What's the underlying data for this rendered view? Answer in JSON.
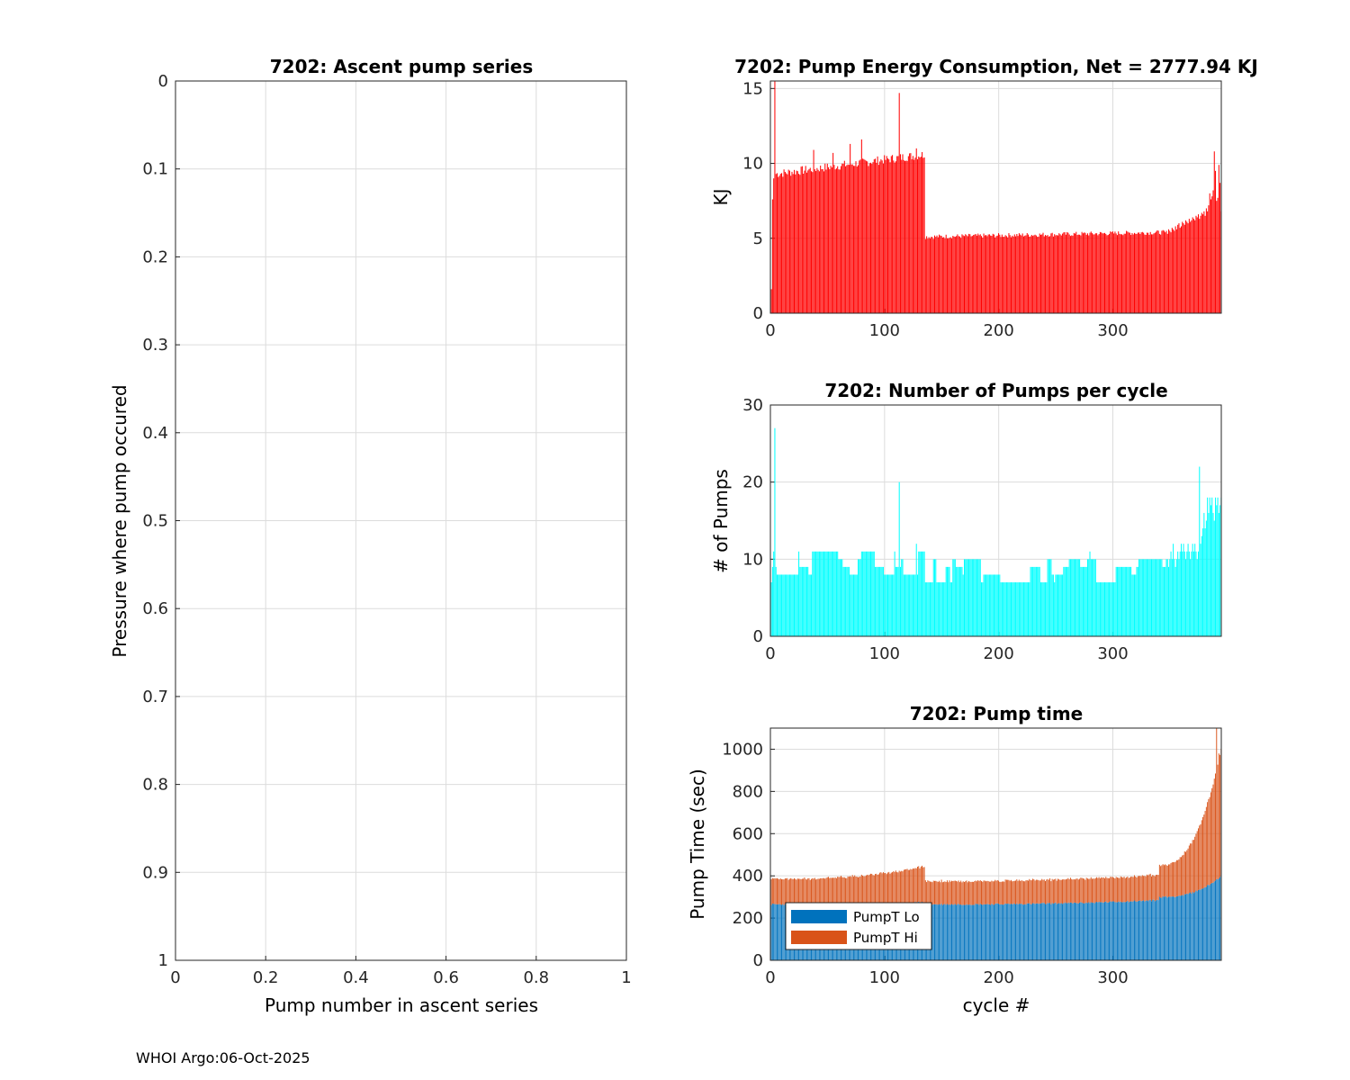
{
  "footer": "WHOI Argo:06-Oct-2025",
  "chart_data": [
    {
      "id": "ascent",
      "type": "scatter",
      "title": "7202: Ascent pump series",
      "xlabel": "Pump number in ascent series",
      "ylabel": "Pressure where pump occured",
      "xlim": [
        0,
        1
      ],
      "ylim": [
        0,
        1
      ],
      "y_reversed": true,
      "grid": true,
      "xticks": [
        0,
        0.2,
        0.4,
        0.6,
        0.8,
        1
      ],
      "xtick_labels": [
        "0",
        "0.2",
        "0.4",
        "0.6",
        "0.8",
        "1"
      ],
      "yticks": [
        0,
        0.1,
        0.2,
        0.3,
        0.4,
        0.5,
        0.6,
        0.7,
        0.8,
        0.9,
        1
      ],
      "ytick_labels": [
        "0",
        "0.1",
        "0.2",
        "0.3",
        "0.4",
        "0.5",
        "0.6",
        "0.7",
        "0.8",
        "0.9",
        "1"
      ],
      "points": []
    },
    {
      "id": "energy",
      "type": "bar",
      "title": "7202: Pump Energy Consumption,  Net = 2777.94 KJ",
      "xlabel": "",
      "ylabel": "KJ",
      "xlim": [
        0,
        395
      ],
      "ylim": [
        0,
        15.5
      ],
      "grid": true,
      "color": "#ff0000",
      "xticks": [
        0,
        100,
        200,
        300
      ],
      "xtick_labels": [
        "0",
        "100",
        "200",
        "300"
      ],
      "yticks": [
        0,
        5,
        10,
        15
      ],
      "ytick_labels": [
        "0",
        "5",
        "10",
        "15"
      ],
      "segments": [
        {
          "from": 1,
          "to": 1,
          "values": [
            1.6
          ]
        },
        {
          "from": 2,
          "to": 2,
          "values": [
            7.6
          ]
        },
        {
          "from": 3,
          "to": 3,
          "values": [
            9.0
          ]
        },
        {
          "from": 4,
          "to": 4,
          "values": [
            15.5
          ]
        },
        {
          "from": 5,
          "to": 135,
          "start": 9.3,
          "end": 10.6,
          "jitter": 0.3
        },
        {
          "from": 136,
          "to": 345,
          "start": 5.1,
          "end": 5.4,
          "jitter": 0.15
        }
      ],
      "spikes": [
        [
          38,
          10.9
        ],
        [
          55,
          10.7
        ],
        [
          70,
          11.3
        ],
        [
          80,
          11.6
        ],
        [
          113,
          14.7
        ],
        [
          128,
          11.0
        ]
      ],
      "tail": [
        5.4,
        5.5,
        5.3,
        5.6,
        5.5,
        5.4,
        5.7,
        5.6,
        5.5,
        5.8,
        5.6,
        5.9,
        6.0,
        5.7,
        5.8,
        6.1,
        6.0,
        5.9,
        6.2,
        6.1,
        6.0,
        6.3,
        6.1,
        6.2,
        6.4,
        6.3,
        6.2,
        6.5,
        6.4,
        6.6,
        6.3,
        6.5,
        6.7,
        6.6,
        6.8,
        6.5,
        7.0,
        6.8,
        7.2,
        8.0,
        7.6,
        7.8,
        8.2,
        10.8,
        9.5,
        7.5,
        7.7,
        9.9,
        8.7,
        6.8
      ]
    },
    {
      "id": "pumps",
      "type": "bar",
      "title": "7202: Number of Pumps per cycle",
      "xlabel": "",
      "ylabel": "# of Pumps",
      "xlim": [
        0,
        395
      ],
      "ylim": [
        0,
        30
      ],
      "grid": true,
      "color": "#00ffff",
      "xticks": [
        0,
        100,
        200,
        300
      ],
      "xtick_labels": [
        "0",
        "100",
        "200",
        "300"
      ],
      "yticks": [
        0,
        10,
        20,
        30
      ],
      "ytick_labels": [
        "0",
        "10",
        "20",
        "30"
      ],
      "values_pattern": {
        "first": [
          7,
          9,
          11,
          27,
          9
        ],
        "block1": {
          "from": 6,
          "to": 135,
          "levels": [
            8,
            9,
            10,
            11
          ]
        },
        "block2": {
          "from": 136,
          "to": 345,
          "levels": [
            7,
            8,
            9,
            10
          ]
        },
        "tail": [
          9,
          10,
          10,
          9,
          10,
          11,
          10,
          12,
          10,
          9,
          10,
          11,
          10,
          11,
          12,
          11,
          12,
          11,
          10,
          11,
          12,
          11,
          10,
          11,
          12,
          11,
          12,
          11,
          10,
          11,
          22,
          12,
          13,
          14,
          16,
          14,
          15,
          18,
          16,
          18,
          17,
          18,
          16,
          15,
          18,
          17,
          18,
          16,
          17,
          18
        ]
      },
      "spikes": [
        [
          113,
          20
        ],
        [
          128,
          12
        ],
        [
          280,
          11
        ]
      ]
    },
    {
      "id": "pumptime",
      "type": "bar",
      "stacked": true,
      "title": "7202: Pump time",
      "xlabel": "cycle #",
      "ylabel": "Pump Time (sec)",
      "xlim": [
        0,
        395
      ],
      "ylim": [
        0,
        1100
      ],
      "grid": true,
      "xticks": [
        0,
        100,
        200,
        300
      ],
      "xtick_labels": [
        "0",
        "100",
        "200",
        "300"
      ],
      "yticks": [
        0,
        200,
        400,
        600,
        800,
        1000
      ],
      "ytick_labels": [
        "0",
        "200",
        "400",
        "600",
        "800",
        "1000"
      ],
      "legend_position": "bottom-left",
      "series": [
        {
          "name": "PumpT Lo",
          "color": "#0072bd",
          "segments": [
            [
              1,
              135,
              265,
              275
            ],
            [
              136,
              340,
              265,
              285
            ],
            [
              341,
              395,
              300,
              400
            ]
          ]
        },
        {
          "name": "PumpT Hi",
          "color": "#d95319",
          "segments": [
            [
              1,
              135,
              120,
              170
            ],
            [
              136,
              340,
              110,
              120
            ],
            [
              341,
              395,
              150,
              600
            ]
          ]
        }
      ],
      "totals_peak": [
        [
          391,
          1100
        ],
        [
          393,
          980
        ]
      ]
    }
  ]
}
